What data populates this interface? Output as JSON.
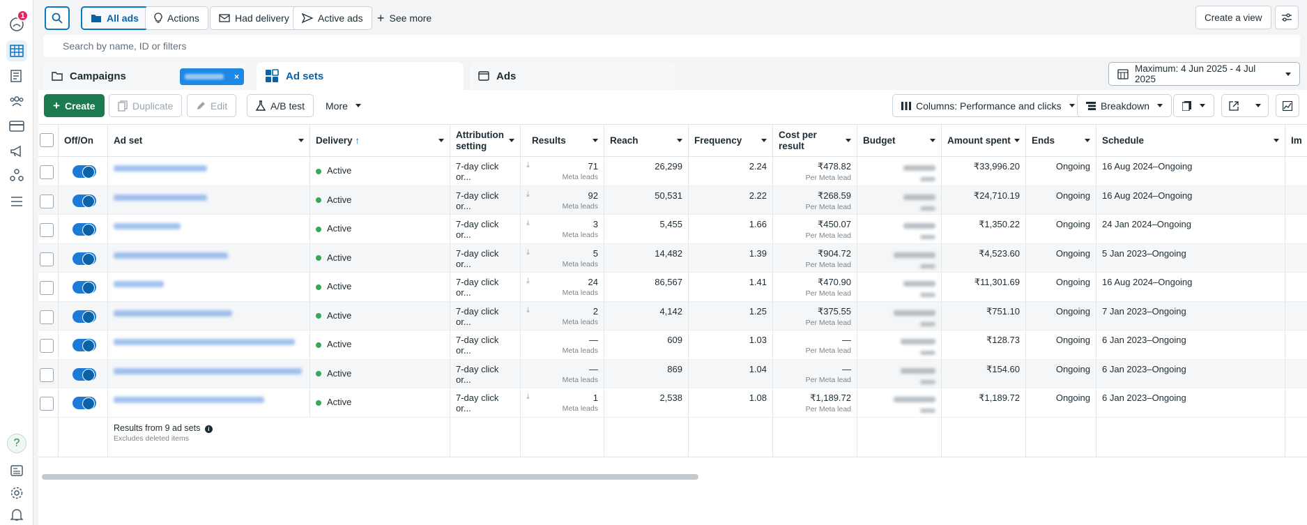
{
  "rail": {
    "notification_count": "1",
    "help_label": "?"
  },
  "topbar": {
    "all_ads": "All ads",
    "actions": "Actions",
    "had_delivery": "Had delivery",
    "active_ads": "Active ads",
    "see_more": "See more",
    "create_view": "Create a view"
  },
  "search": {
    "placeholder": "Search by name, ID or filters"
  },
  "tabs": {
    "campaigns": "Campaigns",
    "ad_sets": "Ad sets",
    "ads": "Ads",
    "chip_close": "×"
  },
  "date_range": "Maximum: 4 Jun 2025 - 4 Jul 2025",
  "toolbar": {
    "create": "Create",
    "duplicate": "Duplicate",
    "edit": "Edit",
    "ab_test": "A/B test",
    "more": "More",
    "columns": "Columns: Performance and clicks",
    "breakdown": "Breakdown"
  },
  "table": {
    "headers": {
      "off_on": "Off/On",
      "ad_set": "Ad set",
      "delivery": "Delivery",
      "attribution_1": "Attribution",
      "attribution_2": "setting",
      "results": "Results",
      "reach": "Reach",
      "frequency": "Frequency",
      "cost_1": "Cost per",
      "cost_2": "result",
      "budget": "Budget",
      "amount_spent": "Amount spent",
      "ends": "Ends",
      "schedule": "Schedule",
      "impressions": "Im"
    },
    "rows": [
      {
        "delivery": "Active",
        "attribution": "7-day click or...",
        "results": "71",
        "results_sub": "Meta leads",
        "reach": "26,299",
        "frequency": "2.24",
        "cost": "₹478.82",
        "cost_sub": "Per Meta lead",
        "spent": "₹33,996.20",
        "ends": "Ongoing",
        "schedule": "16 Aug 2024–Ongoing"
      },
      {
        "delivery": "Active",
        "attribution": "7-day click or...",
        "results": "92",
        "results_sub": "Meta leads",
        "reach": "50,531",
        "frequency": "2.22",
        "cost": "₹268.59",
        "cost_sub": "Per Meta lead",
        "spent": "₹24,710.19",
        "ends": "Ongoing",
        "schedule": "16 Aug 2024–Ongoing"
      },
      {
        "delivery": "Active",
        "attribution": "7-day click or...",
        "results": "3",
        "results_sub": "Meta leads",
        "reach": "5,455",
        "frequency": "1.66",
        "cost": "₹450.07",
        "cost_sub": "Per Meta lead",
        "spent": "₹1,350.22",
        "ends": "Ongoing",
        "schedule": "24 Jan 2024–Ongoing"
      },
      {
        "delivery": "Active",
        "attribution": "7-day click or...",
        "results": "5",
        "results_sub": "Meta leads",
        "reach": "14,482",
        "frequency": "1.39",
        "cost": "₹904.72",
        "cost_sub": "Per Meta lead",
        "spent": "₹4,523.60",
        "ends": "Ongoing",
        "schedule": "5 Jan 2023–Ongoing"
      },
      {
        "delivery": "Active",
        "attribution": "7-day click or...",
        "results": "24",
        "results_sub": "Meta leads",
        "reach": "86,567",
        "frequency": "1.41",
        "cost": "₹470.90",
        "cost_sub": "Per Meta lead",
        "spent": "₹11,301.69",
        "ends": "Ongoing",
        "schedule": "16 Aug 2024–Ongoing"
      },
      {
        "delivery": "Active",
        "attribution": "7-day click or...",
        "results": "2",
        "results_sub": "Meta leads",
        "reach": "4,142",
        "frequency": "1.25",
        "cost": "₹375.55",
        "cost_sub": "Per Meta lead",
        "spent": "₹751.10",
        "ends": "Ongoing",
        "schedule": "7 Jan 2023–Ongoing"
      },
      {
        "delivery": "Active",
        "attribution": "7-day click or...",
        "results": "—",
        "results_sub": "Meta leads",
        "reach": "609",
        "frequency": "1.03",
        "cost": "—",
        "cost_sub": "Per Meta lead",
        "spent": "₹128.73",
        "ends": "Ongoing",
        "schedule": "6 Jan 2023–Ongoing"
      },
      {
        "delivery": "Active",
        "attribution": "7-day click or...",
        "results": "—",
        "results_sub": "Meta leads",
        "reach": "869",
        "frequency": "1.04",
        "cost": "—",
        "cost_sub": "Per Meta lead",
        "spent": "₹154.60",
        "ends": "Ongoing",
        "schedule": "6 Jan 2023–Ongoing"
      },
      {
        "delivery": "Active",
        "attribution": "7-day click or...",
        "results": "1",
        "results_sub": "Meta leads",
        "reach": "2,538",
        "frequency": "1.08",
        "cost": "₹1,189.72",
        "cost_sub": "Per Meta lead",
        "spent": "₹1,189.72",
        "ends": "Ongoing",
        "schedule": "6 Jan 2023–Ongoing"
      }
    ],
    "footer": {
      "results_from": "Results from 9 ad sets",
      "excludes": "Excludes deleted items"
    }
  }
}
